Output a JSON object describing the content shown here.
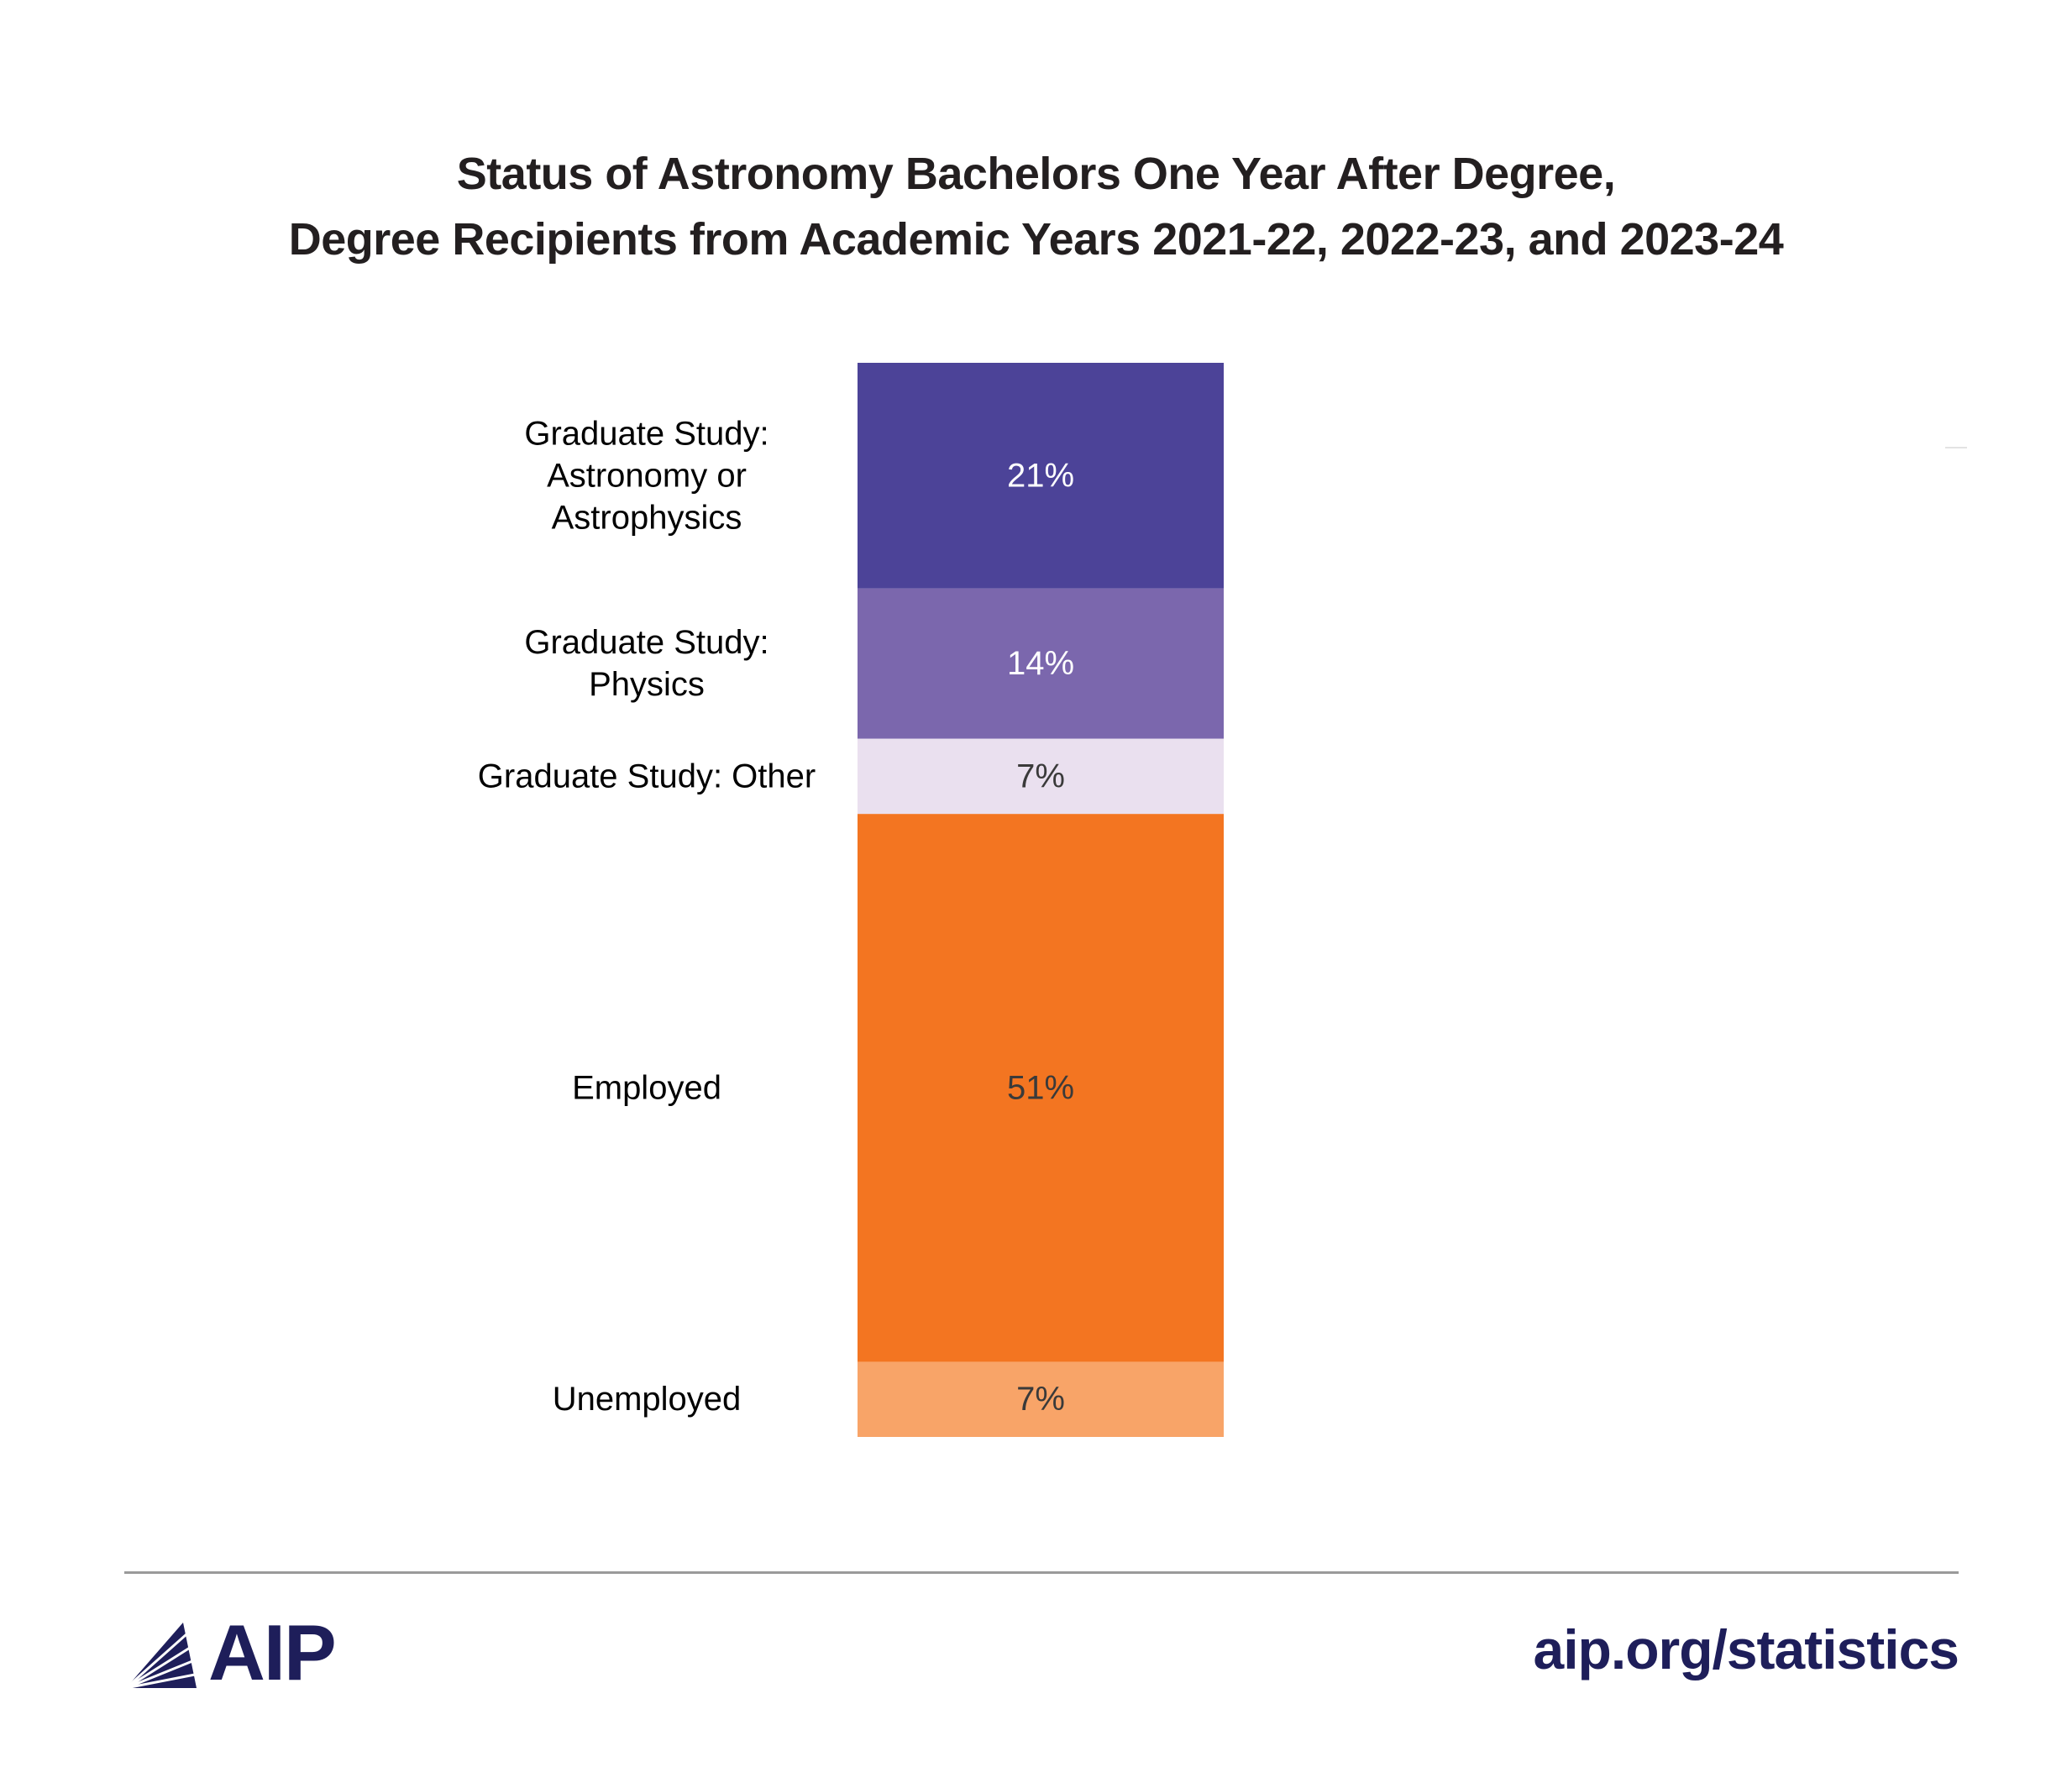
{
  "chart_data": {
    "type": "bar",
    "stacked": true,
    "title": [
      "Status of Astronomy Bachelors One Year After Degree,",
      "Degree Recipients from Academic Years 2021-22, 2022-23, and 2023-24"
    ],
    "categories": [
      "Graduate Study: Astronomy or Astrophysics",
      "Graduate Study: Physics",
      "Graduate Study: Other",
      "Employed",
      "Unemployed"
    ],
    "label_lines": [
      [
        "Graduate Study:",
        "Astronomy or",
        "Astrophysics"
      ],
      [
        "Graduate Study:",
        "Physics"
      ],
      [
        "Graduate Study: Other"
      ],
      [
        "Employed"
      ],
      [
        "Unemployed"
      ]
    ],
    "values": [
      21,
      14,
      7,
      51,
      7
    ],
    "value_labels": [
      "21%",
      "14%",
      "7%",
      "51%",
      "7%"
    ],
    "colors": [
      "#4c4398",
      "#7b67ad",
      "#eae0ef",
      "#f37521",
      "#f8a468"
    ],
    "label_colors": [
      "#ffffff",
      "#ffffff",
      "#3a3a3a",
      "#3a3a3a",
      "#3a3a3a"
    ],
    "legend": "none",
    "grid": false
  },
  "footer": {
    "logo_text": "AIP",
    "url": "aip.org/statistics"
  }
}
